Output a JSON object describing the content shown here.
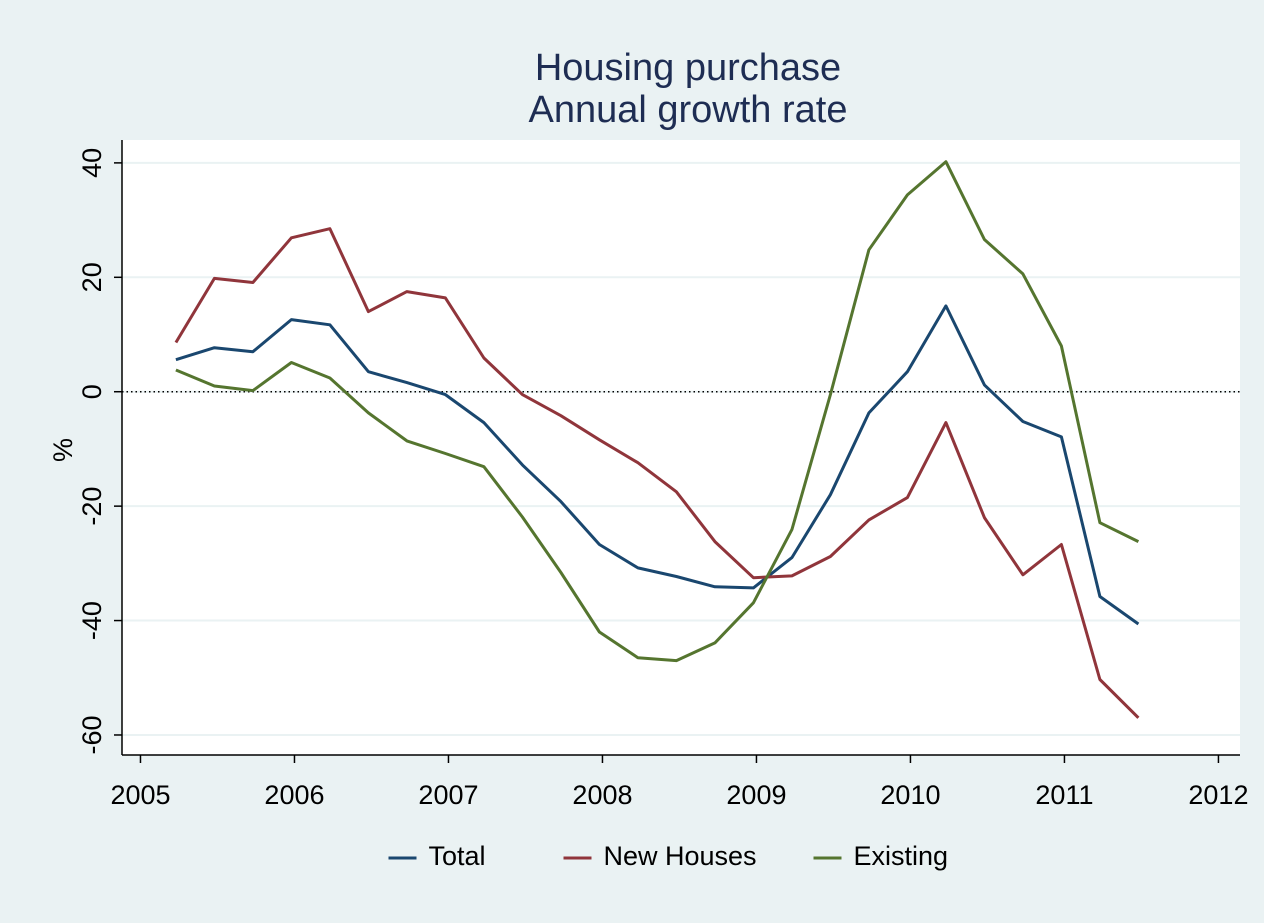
{
  "chart_data": {
    "type": "line",
    "title": [
      "Housing purchase",
      "Annual growth rate"
    ],
    "y_label": "%",
    "x": [
      2005.23,
      2005.48,
      2005.73,
      2005.98,
      2006.23,
      2006.48,
      2006.73,
      2006.98,
      2007.23,
      2007.48,
      2007.73,
      2007.98,
      2008.23,
      2008.48,
      2008.73,
      2008.98,
      2009.23,
      2009.48,
      2009.73,
      2009.98,
      2010.23,
      2010.48,
      2010.73,
      2010.98,
      2011.23,
      2011.48
    ],
    "series": [
      {
        "name": "Total",
        "color": "#1a476f",
        "values": [
          5.6,
          7.7,
          7.0,
          12.6,
          11.7,
          3.5,
          1.6,
          -0.5,
          -5.4,
          -12.8,
          -19.2,
          -26.7,
          -30.8,
          -32.3,
          -34.1,
          -34.3,
          -29,
          -18,
          -3.7,
          3.5,
          15,
          1.2,
          -5.2,
          -7.9,
          -35.8,
          -40.6
        ]
      },
      {
        "name": "New Houses",
        "color": "#90353b",
        "values": [
          8.6,
          19.8,
          19.1,
          26.9,
          28.5,
          14.0,
          17.5,
          16.4,
          5.9,
          -0.5,
          -4.2,
          -8.4,
          -12.4,
          -17.5,
          -26.2,
          -32.5,
          -32.2,
          -28.8,
          -22.4,
          -18.5,
          -5.4,
          -22,
          -32,
          -26.7,
          -50.3,
          -57
        ]
      },
      {
        "name": "Existing",
        "color": "#55752f",
        "values": [
          3.8,
          1.0,
          0.2,
          5.1,
          2.4,
          -3.7,
          -8.6,
          -10.8,
          -13.1,
          -21.9,
          -31.6,
          -42,
          -46.5,
          -47,
          -43.9,
          -36.9,
          -24.1,
          -0.5,
          24.8,
          34.4,
          40.2,
          26.6,
          20.6,
          8.0,
          -22.9,
          -26.2
        ]
      }
    ],
    "xlim": [
      2004.88,
      2012.14
    ],
    "xticks": [
      2005,
      2006,
      2007,
      2008,
      2009,
      2010,
      2011,
      2012
    ],
    "ylim": [
      -63.5,
      44
    ],
    "yticks": [
      -60,
      -40,
      -20,
      0,
      20,
      40
    ],
    "yline": 0,
    "grid": true,
    "legend": "bottom"
  }
}
